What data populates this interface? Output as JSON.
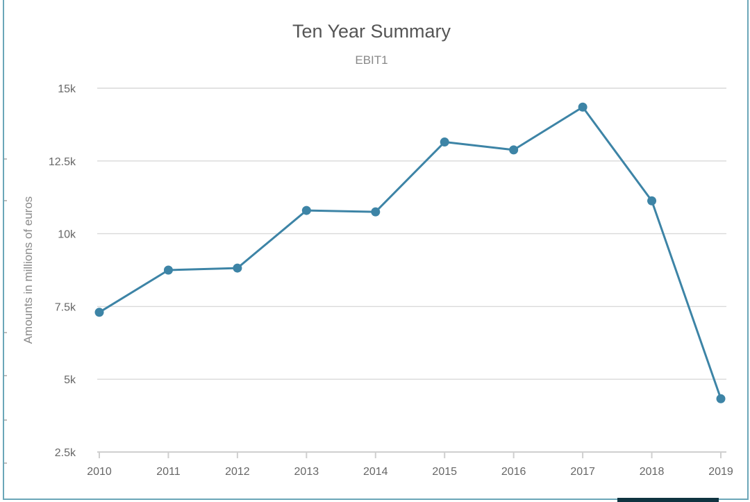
{
  "chart_data": {
    "type": "line",
    "title": "Ten Year Summary",
    "subtitle": "EBIT1",
    "xlabel": "",
    "ylabel": "Amounts in millions of euros",
    "categories": [
      "2010",
      "2011",
      "2012",
      "2013",
      "2014",
      "2015",
      "2016",
      "2017",
      "2018",
      "2019"
    ],
    "series": [
      {
        "values": [
          7300,
          8750,
          8820,
          10800,
          10750,
          13150,
          12880,
          14350,
          11130,
          4330
        ]
      }
    ],
    "ylim": [
      2500,
      15000
    ],
    "yticks": [
      2500,
      5000,
      7500,
      10000,
      12500,
      15000
    ],
    "ytick_labels": [
      "2.5k",
      "5k",
      "7.5k",
      "10k",
      "12.5k",
      "15k"
    ],
    "grid": true,
    "color": "#3d84a6"
  }
}
